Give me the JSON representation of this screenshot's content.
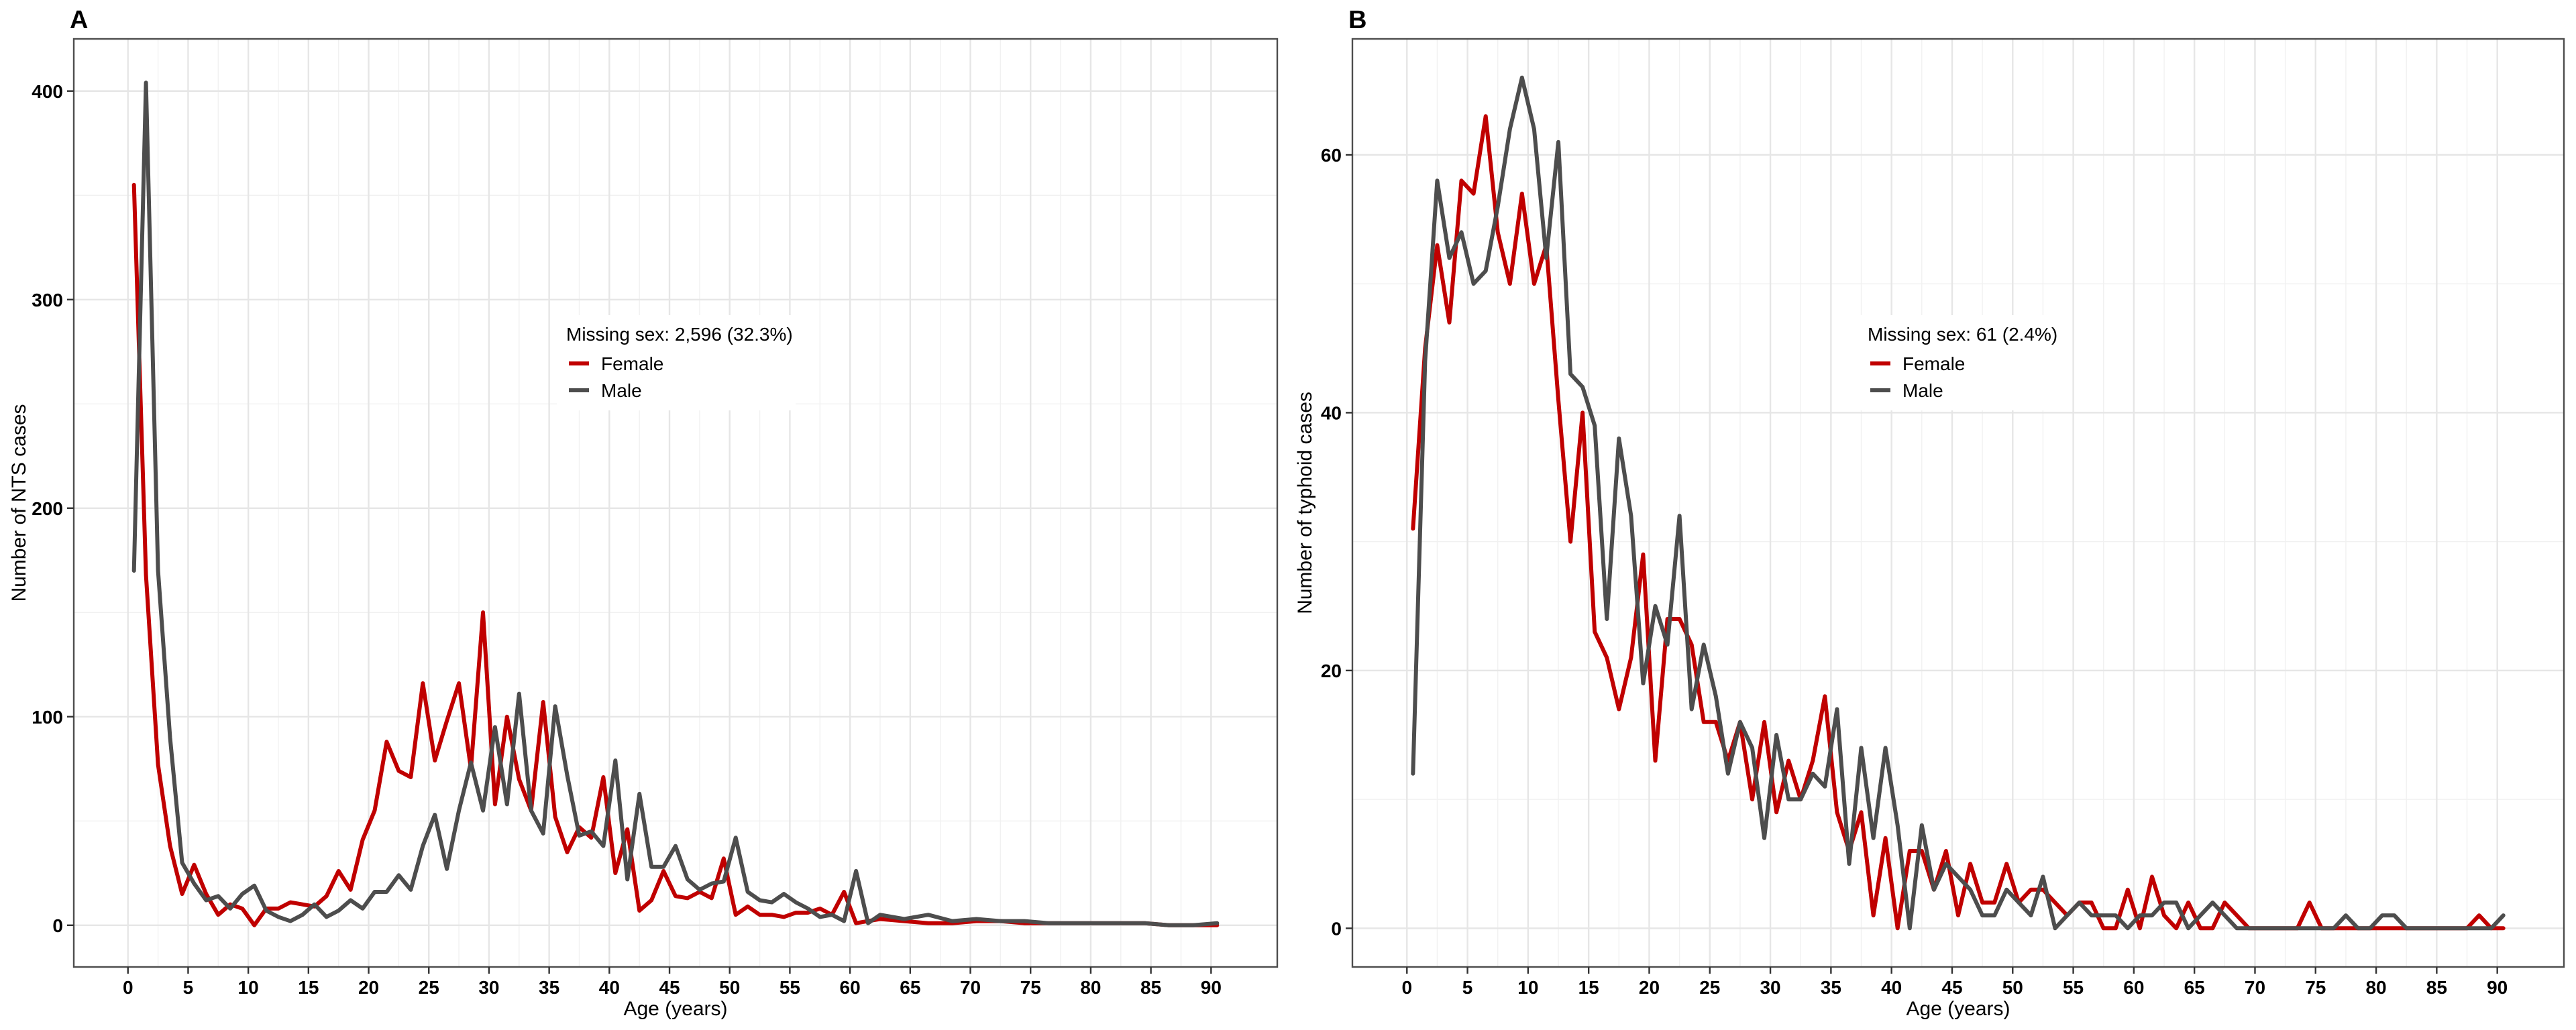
{
  "chart_data": [
    {
      "panel_tag": "A",
      "type": "line",
      "title": "",
      "xlabel": "Age (years)",
      "ylabel": "Number of NTS cases",
      "xlim": [
        -4.5,
        95.5
      ],
      "ylim": [
        -20,
        425
      ],
      "xticks": [
        0,
        5,
        10,
        15,
        20,
        25,
        30,
        35,
        40,
        45,
        50,
        55,
        60,
        65,
        70,
        75,
        80,
        85,
        90
      ],
      "yticks": [
        0,
        100,
        200,
        300,
        400
      ],
      "grid": true,
      "legend": {
        "title": "Missing sex: 2,596 (32.3%)",
        "placement": "center"
      },
      "series": [
        {
          "name": "Female",
          "color": "#c00000",
          "x": [
            0.5,
            1.5,
            2.5,
            3.5,
            4.5,
            5.5,
            6.5,
            7.5,
            8.5,
            9.5,
            10.5,
            11.5,
            12.5,
            13.5,
            14.5,
            15.5,
            16.5,
            17.5,
            18.5,
            19.5,
            20.5,
            21.5,
            22.5,
            23.5,
            24.5,
            25.5,
            26.5,
            27.5,
            28.5,
            29.5,
            30.5,
            31.5,
            32.5,
            33.5,
            34.5,
            35.5,
            36.5,
            37.5,
            38.5,
            39.5,
            40.5,
            41.5,
            42.5,
            43.5,
            44.5,
            45.5,
            46.5,
            47.5,
            48.5,
            49.5,
            50.5,
            51.5,
            52.5,
            53.5,
            54.5,
            55.5,
            56.5,
            57.5,
            58.5,
            59.5,
            60.5,
            62.5,
            64.5,
            66.5,
            68.5,
            70.5,
            72.5,
            74.5,
            76.5,
            78.5,
            80.5,
            82.5,
            84.5,
            86.5,
            88.5,
            90.5
          ],
          "values": [
            355,
            168,
            77,
            38,
            15,
            29,
            15,
            5,
            10,
            8,
            0,
            8,
            8,
            11,
            10,
            9,
            14,
            26,
            17,
            41,
            55,
            88,
            74,
            71,
            116,
            79,
            98,
            116,
            75,
            150,
            58,
            100,
            70,
            55,
            107,
            52,
            35,
            47,
            42,
            71,
            25,
            46,
            7,
            12,
            26,
            14,
            13,
            16,
            13,
            32,
            5,
            9,
            5,
            5,
            4,
            6,
            6,
            8,
            5,
            16,
            1,
            3,
            2,
            1,
            1,
            2,
            2,
            1,
            1,
            1,
            1,
            1,
            1,
            0,
            0,
            0
          ]
        },
        {
          "name": "Male",
          "color": "#4d4d4d",
          "x": [
            0.5,
            1.5,
            2.5,
            3.5,
            4.5,
            5.5,
            6.5,
            7.5,
            8.5,
            9.5,
            10.5,
            11.5,
            12.5,
            13.5,
            14.5,
            15.5,
            16.5,
            17.5,
            18.5,
            19.5,
            20.5,
            21.5,
            22.5,
            23.5,
            24.5,
            25.5,
            26.5,
            27.5,
            28.5,
            29.5,
            30.5,
            31.5,
            32.5,
            33.5,
            34.5,
            35.5,
            36.5,
            37.5,
            38.5,
            39.5,
            40.5,
            41.5,
            42.5,
            43.5,
            44.5,
            45.5,
            46.5,
            47.5,
            48.5,
            49.5,
            50.5,
            51.5,
            52.5,
            53.5,
            54.5,
            55.5,
            56.5,
            57.5,
            58.5,
            59.5,
            60.5,
            61.5,
            62.5,
            64.5,
            66.5,
            68.5,
            70.5,
            72.5,
            74.5,
            76.5,
            78.5,
            80.5,
            82.5,
            84.5,
            86.5,
            88.5,
            90.5
          ],
          "values": [
            170,
            404,
            170,
            90,
            30,
            20,
            12,
            14,
            8,
            15,
            19,
            7,
            4,
            2,
            5,
            10,
            4,
            7,
            12,
            8,
            16,
            16,
            24,
            17,
            38,
            53,
            27,
            55,
            78,
            55,
            95,
            58,
            111,
            55,
            44,
            105,
            72,
            43,
            45,
            38,
            79,
            22,
            63,
            28,
            28,
            38,
            22,
            17,
            20,
            21,
            42,
            16,
            12,
            11,
            15,
            11,
            8,
            4,
            5,
            2,
            26,
            1,
            5,
            3,
            5,
            2,
            3,
            2,
            2,
            1,
            1,
            1,
            1,
            1,
            0,
            0,
            1
          ]
        }
      ]
    },
    {
      "panel_tag": "B",
      "type": "line",
      "title": "",
      "xlabel": "Age (years)",
      "ylabel": "Number of typhoid cases",
      "xlim": [
        -4.5,
        95.5
      ],
      "ylim": [
        -3,
        69
      ],
      "xticks": [
        0,
        5,
        10,
        15,
        20,
        25,
        30,
        35,
        40,
        45,
        50,
        55,
        60,
        65,
        70,
        75,
        80,
        85,
        90
      ],
      "yticks": [
        0,
        20,
        40,
        60
      ],
      "grid": true,
      "legend": {
        "title": "Missing sex: 61 (2.4%)",
        "placement": "center"
      },
      "series": [
        {
          "name": "Female",
          "color": "#c00000",
          "x": [
            0.5,
            1.5,
            2.5,
            3.5,
            4.5,
            5.5,
            6.5,
            7.5,
            8.5,
            9.5,
            10.5,
            11.5,
            12.5,
            13.5,
            14.5,
            15.5,
            16.5,
            17.5,
            18.5,
            19.5,
            20.5,
            21.5,
            22.5,
            23.5,
            24.5,
            25.5,
            26.5,
            27.5,
            28.5,
            29.5,
            30.5,
            31.5,
            32.5,
            33.5,
            34.5,
            35.5,
            36.5,
            37.5,
            38.5,
            39.5,
            40.5,
            41.5,
            42.5,
            43.5,
            44.5,
            45.5,
            46.5,
            47.5,
            48.5,
            49.5,
            50.5,
            51.5,
            52.5,
            53.5,
            54.5,
            55.5,
            56.5,
            57.5,
            58.5,
            59.5,
            60.5,
            61.5,
            62.5,
            63.5,
            64.5,
            65.5,
            66.5,
            67.5,
            68.5,
            69.5,
            70.5,
            71.5,
            72.5,
            73.5,
            74.5,
            75.5,
            76.5,
            77.5,
            78.5,
            79.5,
            80.5,
            81.5,
            82.5,
            83.5,
            84.5,
            85.5,
            86.5,
            87.5,
            88.5,
            89.5,
            90.5
          ],
          "values": [
            31,
            45,
            53,
            47,
            58,
            57,
            63,
            54,
            50,
            57,
            50,
            53,
            41,
            30,
            40,
            23,
            21,
            17,
            21,
            29,
            13,
            24,
            24,
            22,
            16,
            16,
            13,
            16,
            10,
            16,
            9,
            13,
            10,
            13,
            18,
            9,
            6,
            9,
            1,
            7,
            0,
            6,
            6,
            3,
            6,
            1,
            5,
            2,
            2,
            5,
            2,
            3,
            3,
            2,
            1,
            2,
            2,
            0,
            0,
            3,
            0,
            4,
            1,
            0,
            2,
            0,
            0,
            2,
            1,
            0,
            0,
            0,
            0,
            0,
            2,
            0,
            0,
            0,
            0,
            0,
            0,
            0,
            0,
            0,
            0,
            0,
            0,
            0,
            1,
            0,
            0
          ]
        },
        {
          "name": "Male",
          "color": "#4d4d4d",
          "x": [
            0.5,
            1.5,
            2.5,
            3.5,
            4.5,
            5.5,
            6.5,
            7.5,
            8.5,
            9.5,
            10.5,
            11.5,
            12.5,
            13.5,
            14.5,
            15.5,
            16.5,
            17.5,
            18.5,
            19.5,
            20.5,
            21.5,
            22.5,
            23.5,
            24.5,
            25.5,
            26.5,
            27.5,
            28.5,
            29.5,
            30.5,
            31.5,
            32.5,
            33.5,
            34.5,
            35.5,
            36.5,
            37.5,
            38.5,
            39.5,
            40.5,
            41.5,
            42.5,
            43.5,
            44.5,
            45.5,
            46.5,
            47.5,
            48.5,
            49.5,
            50.5,
            51.5,
            52.5,
            53.5,
            54.5,
            55.5,
            56.5,
            57.5,
            58.5,
            59.5,
            60.5,
            61.5,
            62.5,
            63.5,
            64.5,
            65.5,
            66.5,
            67.5,
            68.5,
            69.5,
            70.5,
            71.5,
            72.5,
            73.5,
            74.5,
            75.5,
            76.5,
            77.5,
            78.5,
            79.5,
            80.5,
            81.5,
            82.5,
            83.5,
            84.5,
            85.5,
            86.5,
            87.5,
            88.5,
            89.5,
            90.5
          ],
          "values": [
            12,
            44,
            58,
            52,
            54,
            50,
            51,
            56,
            62,
            66,
            62,
            52,
            61,
            43,
            42,
            39,
            24,
            38,
            32,
            19,
            25,
            22,
            32,
            17,
            22,
            18,
            12,
            16,
            14,
            7,
            15,
            10,
            10,
            12,
            11,
            17,
            5,
            14,
            7,
            14,
            8,
            0,
            8,
            3,
            5,
            4,
            3,
            1,
            1,
            3,
            2,
            1,
            4,
            0,
            1,
            2,
            1,
            1,
            1,
            0,
            1,
            1,
            2,
            2,
            0,
            1,
            2,
            1,
            0,
            0,
            0,
            0,
            0,
            0,
            0,
            0,
            0,
            1,
            0,
            0,
            1,
            1,
            0,
            0,
            0,
            0,
            0,
            0,
            0,
            0,
            1
          ]
        }
      ]
    }
  ]
}
